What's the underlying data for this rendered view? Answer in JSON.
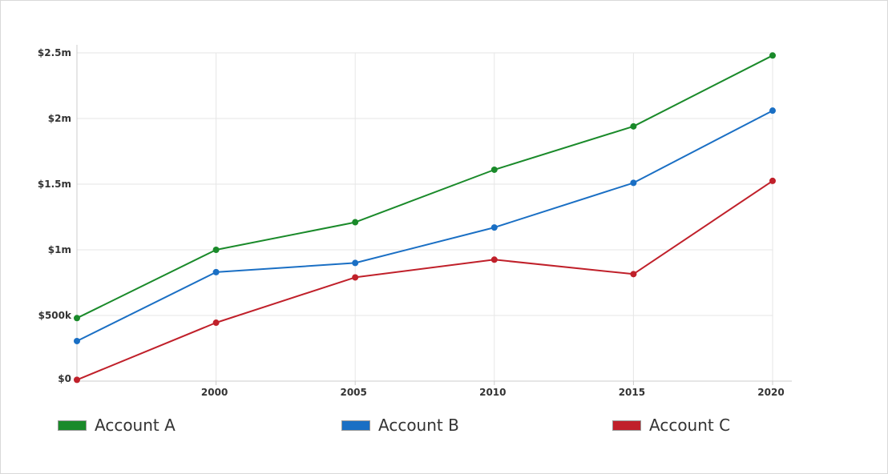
{
  "chart_data": {
    "type": "line",
    "x": [
      1995,
      2000,
      2005,
      2010,
      2015,
      2020
    ],
    "xticks": [
      {
        "value": 2000,
        "label": "2000"
      },
      {
        "value": 2005,
        "label": "2005"
      },
      {
        "value": 2010,
        "label": "2010"
      },
      {
        "value": 2015,
        "label": "2015"
      },
      {
        "value": 2020,
        "label": "2020"
      }
    ],
    "yticks": [
      {
        "value": 0,
        "label": "$0"
      },
      {
        "value": 500000,
        "label": "$500k"
      },
      {
        "value": 1000000,
        "label": "$1m"
      },
      {
        "value": 1500000,
        "label": "$1.5m"
      },
      {
        "value": 2000000,
        "label": "$2m"
      },
      {
        "value": 2500000,
        "label": "$2.5m"
      }
    ],
    "xlim": [
      1995,
      2020
    ],
    "ylim": [
      0,
      2500000
    ],
    "grid": true,
    "legend_position": "bottom",
    "title": "",
    "xlabel": "",
    "ylabel": "",
    "series": [
      {
        "name": "Account A",
        "color": "#1a8a2a",
        "values": [
          480000,
          1000000,
          1210000,
          1610000,
          1940000,
          2480000
        ]
      },
      {
        "name": "Account B",
        "color": "#1a6fc4",
        "values": [
          305000,
          830000,
          900000,
          1170000,
          1510000,
          2060000
        ]
      },
      {
        "name": "Account C",
        "color": "#c0202a",
        "values": [
          10000,
          445000,
          790000,
          925000,
          815000,
          1525000
        ]
      }
    ]
  }
}
